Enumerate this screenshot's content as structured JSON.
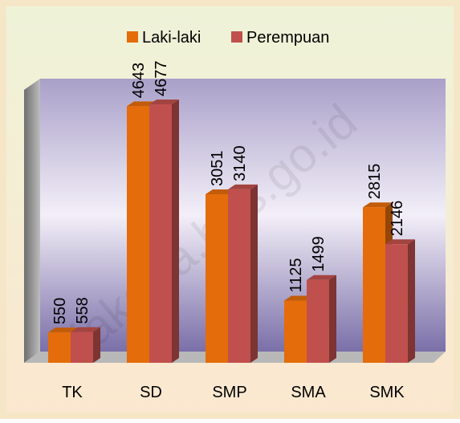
{
  "chart_data": {
    "type": "bar3d",
    "categories": [
      "TK",
      "SD",
      "SMP",
      "SMA",
      "SMK"
    ],
    "series": [
      {
        "name": "Laki-laki",
        "color": "#e46c0a",
        "values": [
          550,
          4643,
          3051,
          1125,
          2815
        ]
      },
      {
        "name": "Perempuan",
        "color": "#c0504d",
        "values": [
          558,
          4677,
          3140,
          1499,
          2146
        ]
      }
    ],
    "legend": "top",
    "watermark": "jakarta.bps.go.id"
  }
}
